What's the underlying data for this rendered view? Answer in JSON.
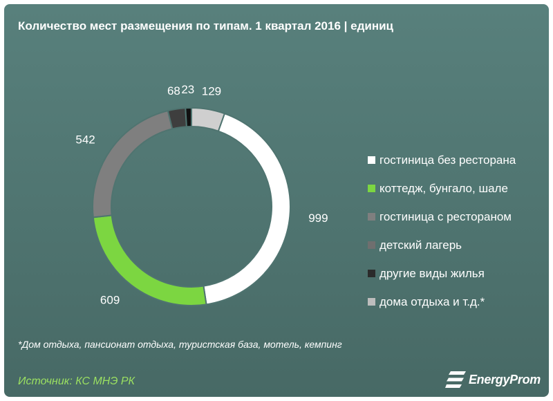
{
  "title": "Количество мест размещения по  типам. 1 квартал 2016  | единиц",
  "footnote": "*Дом отдыха, пансионат отдыха, туристская база, мотель, кемпинг",
  "source": "Источник: КС МНЭ РК",
  "logo": {
    "text": "EnergyProm",
    "icon": "energyprom-logo-icon"
  },
  "chart_data": {
    "type": "donut",
    "start": "top, clockwise",
    "series": [
      {
        "name": "дома отдыха и т.д.*",
        "value": 129,
        "color": "#cfcfcf"
      },
      {
        "name": "гостиница без ресторана",
        "value": 999,
        "color": "#ffffff"
      },
      {
        "name": "коттедж, бунгало, шале",
        "value": 609,
        "color": "#7cd641"
      },
      {
        "name": "гостиница с рестораном",
        "value": 542,
        "color": "#7f7f7f"
      },
      {
        "name": "детский лагерь",
        "value": 68,
        "color": "#3e3e3e"
      },
      {
        "name": "другие виды жилья",
        "value": 23,
        "color": "#111111"
      }
    ],
    "legend": [
      {
        "label": "гостиница без ресторана",
        "color": "#ffffff"
      },
      {
        "label": "коттедж, бунгало, шале",
        "color": "#7cd641"
      },
      {
        "label": "гостиница с рестораном",
        "color": "#7f7f7f"
      },
      {
        "label": "детский лагерь",
        "color": "#6f6f6f"
      },
      {
        "label": "другие виды жилья",
        "color": "#2b2b2b"
      },
      {
        "label": "дома отдыха и т.д.*",
        "color": "#bdbdbd"
      }
    ],
    "legend_position": "right",
    "gap_color": "#4f7470"
  }
}
